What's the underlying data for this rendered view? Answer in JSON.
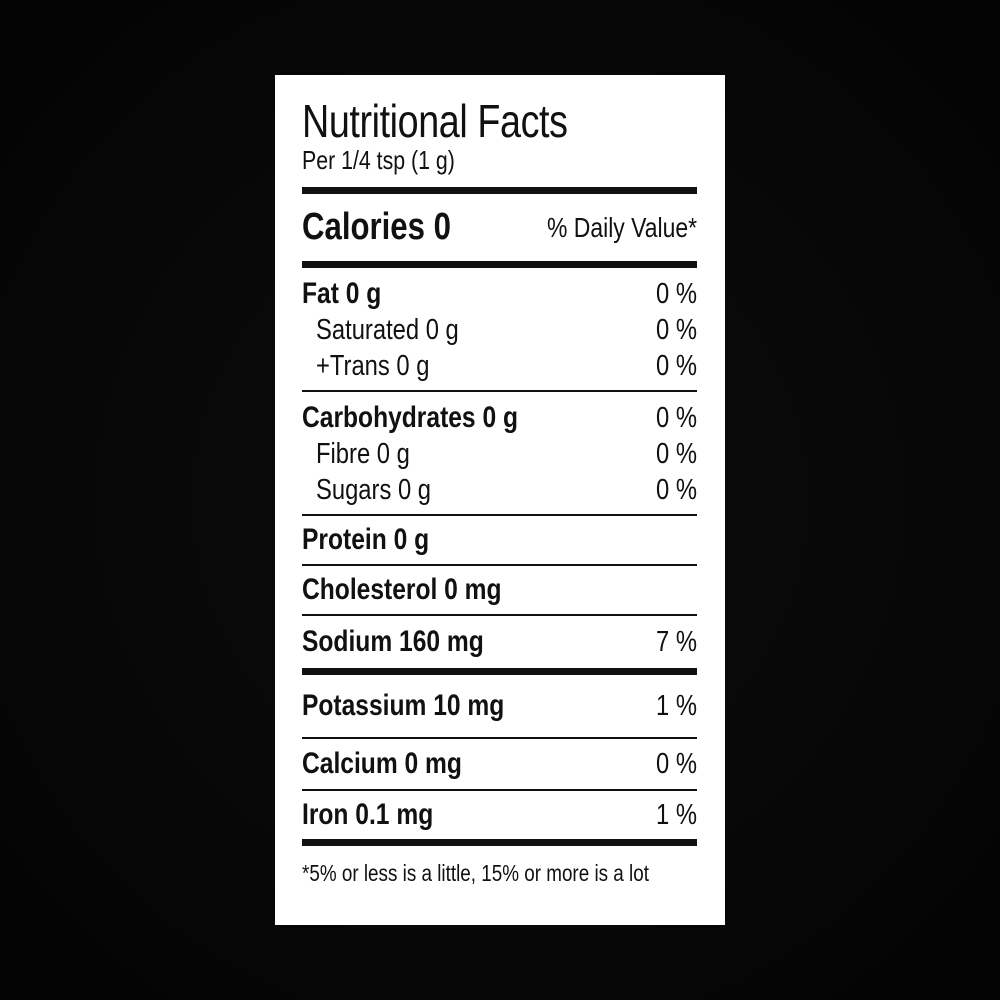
{
  "label": {
    "title": "Nutritional Facts",
    "serving": "Per 1/4 tsp (1 g)",
    "calories": "Calories 0",
    "daily_value_header": "% Daily Value*",
    "fat": {
      "label": "Fat 0 g",
      "pct": "0 %"
    },
    "saturated": {
      "label": "Saturated 0 g",
      "pct": "0 %"
    },
    "trans": {
      "label": "+Trans 0 g",
      "pct": "0 %"
    },
    "carbohydrates": {
      "label": "Carbohydrates 0 g",
      "pct": "0 %"
    },
    "fibre": {
      "label": "Fibre 0 g",
      "pct": "0 %"
    },
    "sugars": {
      "label": "Sugars 0 g",
      "pct": "0 %"
    },
    "protein": {
      "label": "Protein 0 g"
    },
    "cholesterol": {
      "label": "Cholesterol 0 mg"
    },
    "sodium": {
      "label": "Sodium 160 mg",
      "pct": "7 %"
    },
    "potassium": {
      "label": "Potassium 10 mg",
      "pct": "1 %"
    },
    "calcium": {
      "label": "Calcium 0 mg",
      "pct": "0 %"
    },
    "iron": {
      "label": "Iron 0.1 mg",
      "pct": "1 %"
    },
    "footnote": "*5% or less is a little, 15% or more is a lot"
  }
}
